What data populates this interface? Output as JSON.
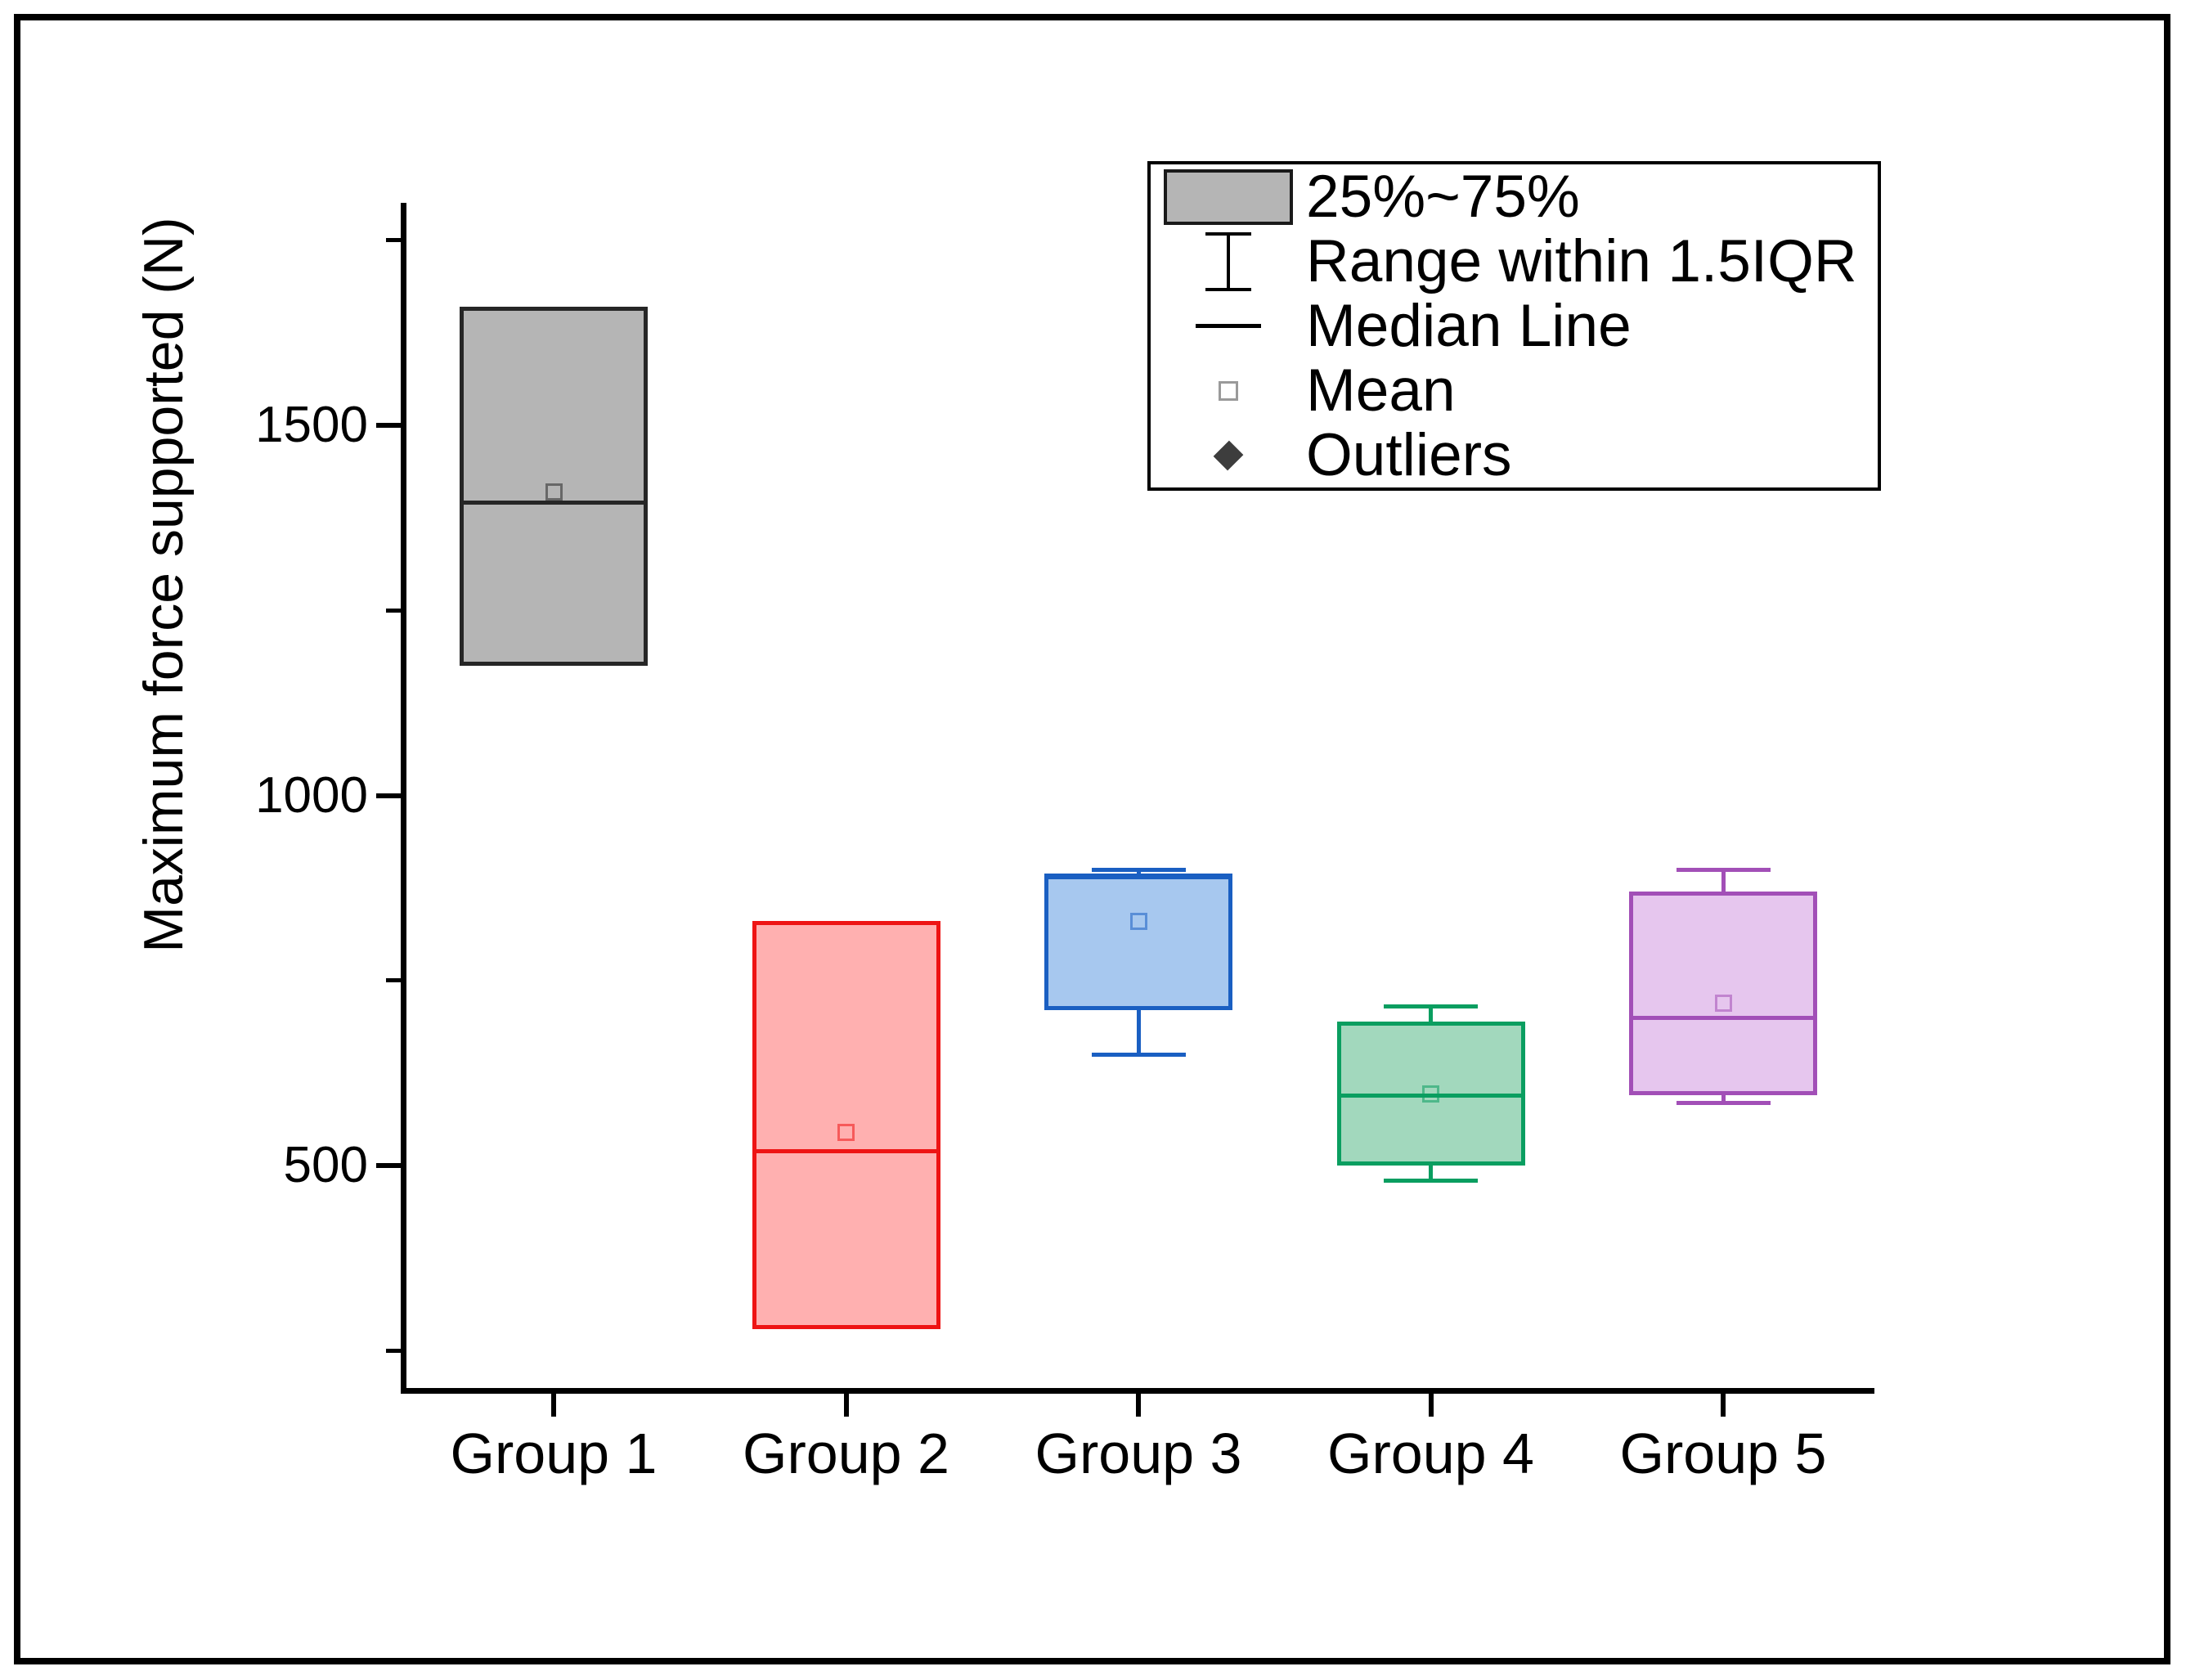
{
  "figure": {
    "background": "#ffffff",
    "frame_color": "#000000"
  },
  "chart_data": {
    "type": "box",
    "title": "",
    "xlabel": "",
    "ylabel": "Maximum force supported (N)",
    "categories": [
      "Group 1",
      "Group 2",
      "Group 3",
      "Group 4",
      "Group 5"
    ],
    "axis": {
      "ymin": 200,
      "ymax": 1800,
      "major_ticks": [
        500,
        1000,
        1500
      ],
      "major_tick_labels": [
        "500",
        "1000",
        "1500"
      ],
      "minor_ticks": [
        250,
        750,
        1250,
        1750
      ],
      "grid": false
    },
    "legend_position": "top-right",
    "legend": [
      {
        "symbol": "box",
        "label": "25%~75%"
      },
      {
        "symbol": "errorbar",
        "label": "Range within 1.5IQR"
      },
      {
        "symbol": "line",
        "label": "Median Line"
      },
      {
        "symbol": "mean-square",
        "label": "Mean"
      },
      {
        "symbol": "diamond",
        "label": "Outliers"
      }
    ],
    "groups": [
      {
        "name": "Group 1",
        "whisker_low": null,
        "q1": 1175,
        "median": 1395,
        "mean": 1410,
        "q3": 1660,
        "whisker_high": null,
        "outliers": [],
        "fill": "#b5b5b5",
        "stroke": "#262626"
      },
      {
        "name": "Group 2",
        "whisker_low": null,
        "q1": 280,
        "median": 520,
        "mean": 545,
        "q3": 830,
        "whisker_high": null,
        "outliers": [],
        "fill": "#ffb0b0",
        "stroke": "#ee1414"
      },
      {
        "name": "Group 3",
        "whisker_low": 650,
        "q1": 710,
        "median": 890,
        "mean": 830,
        "q3": 895,
        "whisker_high": 900,
        "outliers": [],
        "fill": "#a7c8ef",
        "stroke": "#1a5fc2"
      },
      {
        "name": "Group 4",
        "whisker_low": 480,
        "q1": 500,
        "median": 595,
        "mean": 597,
        "q3": 695,
        "whisker_high": 715,
        "outliers": [],
        "fill": "#a2d8bd",
        "stroke": "#0a9e60"
      },
      {
        "name": "Group 5",
        "whisker_low": 585,
        "q1": 595,
        "median": 700,
        "mean": 720,
        "q3": 870,
        "whisker_high": 900,
        "outliers": [],
        "fill": "#e6c6ee",
        "stroke": "#a24fb7"
      }
    ]
  }
}
